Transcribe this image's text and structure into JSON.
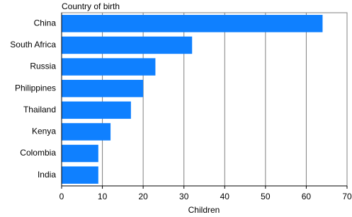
{
  "chart_data": {
    "type": "hbar",
    "title": "Country of birth",
    "x_label": "Children",
    "categories": [
      "China",
      "South Africa",
      "Russia",
      "Philippines",
      "Thailand",
      "Kenya",
      "Colombia",
      "India"
    ],
    "values": [
      64,
      32,
      23,
      20,
      17,
      12,
      9,
      9
    ],
    "color": "#0f80ff",
    "xlim": [
      0,
      70
    ],
    "xticks": [
      0,
      10,
      20,
      30,
      40,
      50,
      60,
      70
    ],
    "grid": true
  }
}
